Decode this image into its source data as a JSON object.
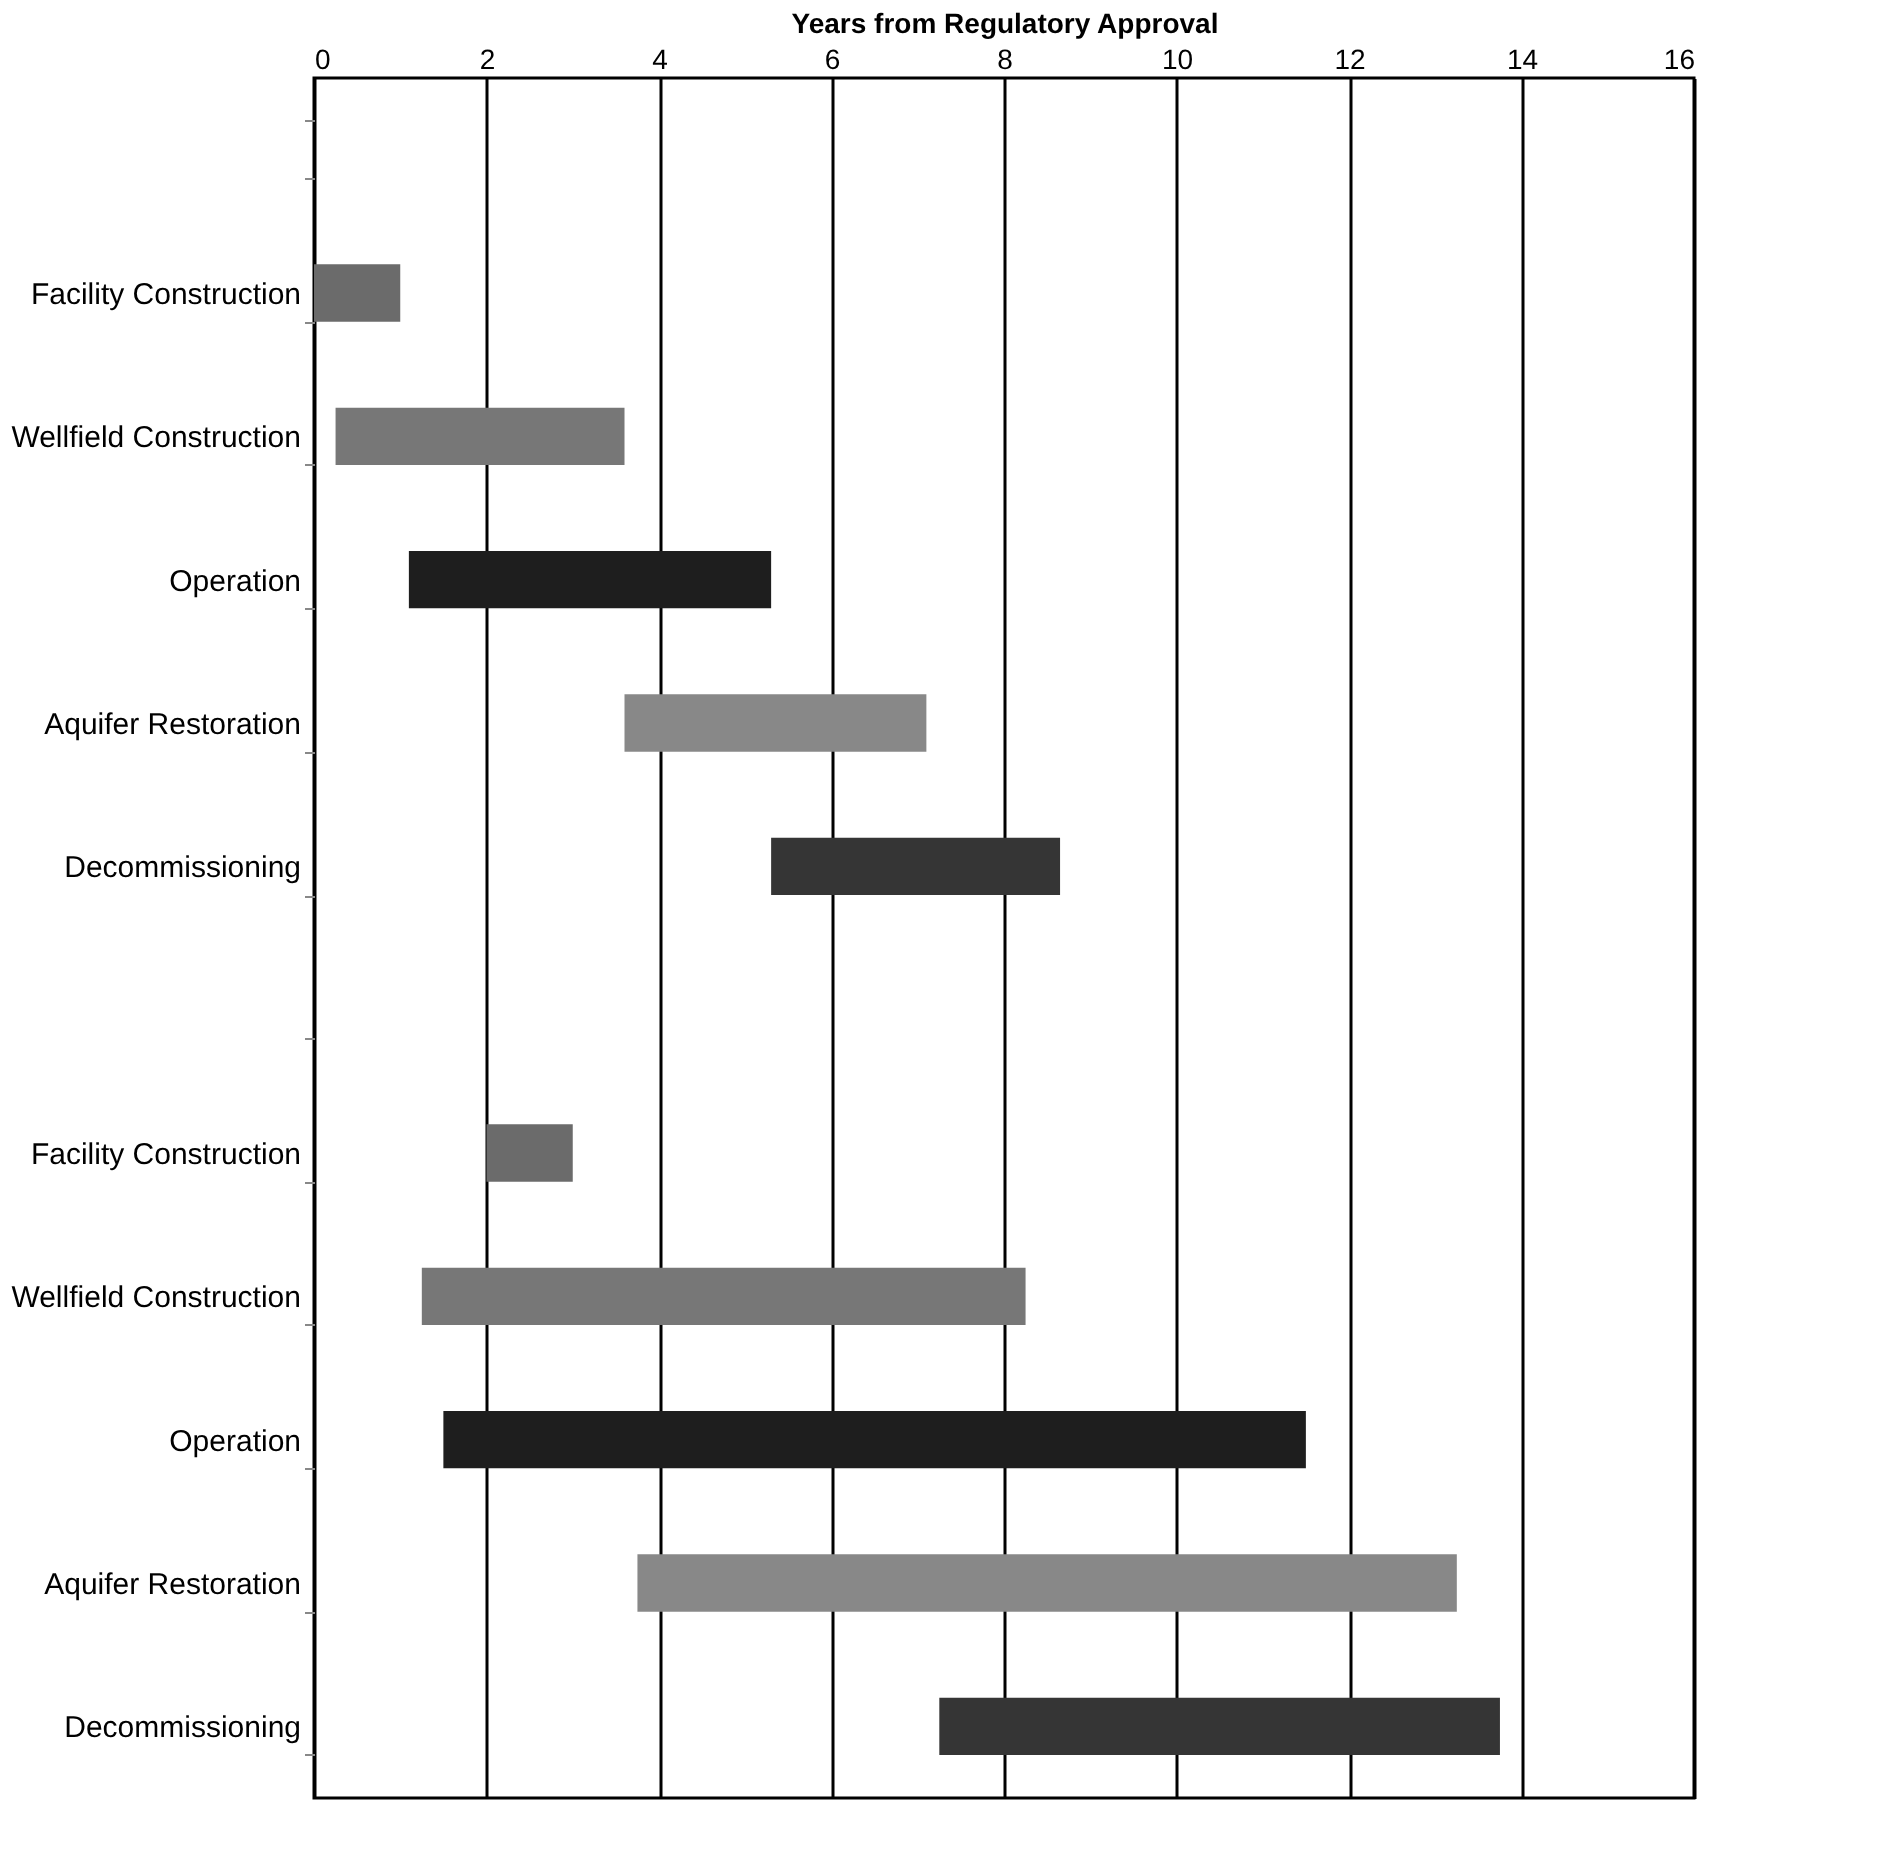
{
  "chart_data": {
    "type": "bar",
    "orientation": "horizontal",
    "xlabel": "Years from Regulatory Approval",
    "categories": [
      null,
      "Facility Construction",
      "Wellfield Construction",
      "Operation",
      "Aquifer Restoration",
      "Decommissioning",
      null,
      "Facility Construction",
      "Wellfield Construction",
      "Operation",
      "Aquifer Restoration",
      "Decommissioning"
    ],
    "base": [
      null,
      0,
      0.25,
      1.1,
      3.6,
      5.3,
      null,
      2,
      1.25,
      1.5,
      3.75,
      7.25
    ],
    "values": [
      null,
      1,
      3.35,
      4.2,
      3.5,
      3.35,
      null,
      1,
      7,
      10,
      9.5,
      6.5
    ],
    "colors": [
      null,
      "#6b6b6b",
      "#777777",
      "#1e1e1e",
      "#888888",
      "#353535",
      null,
      "#6b6b6b",
      "#777777",
      "#1e1e1e",
      "#888888",
      "#353535"
    ],
    "xlim": [
      0,
      16
    ],
    "xticks": [
      0,
      2,
      4,
      6,
      8,
      10,
      12,
      14,
      16
    ],
    "grid": "x"
  }
}
